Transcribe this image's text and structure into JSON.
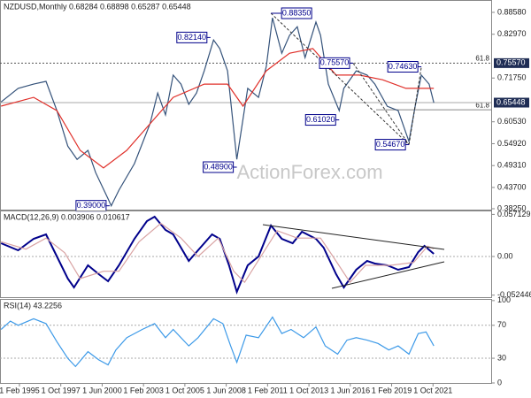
{
  "chart_data": [
    {
      "type": "line",
      "title": "NZDUSD,Monthly  0.68284 0.68898 0.65287 0.65448",
      "watermark": "ActionForex.com",
      "xlim": [
        1993.83,
        2025.5
      ],
      "ylim": [
        0.3802,
        0.9175
      ],
      "yticks": [
        {
          "value": 0.8858,
          "label": "0.88580"
        },
        {
          "value": 0.8297,
          "label": "0.82970"
        },
        {
          "value": 0.7175,
          "label": "0.71750"
        },
        {
          "value": 0.6053,
          "label": "0.60530"
        },
        {
          "value": 0.5492,
          "label": "0.54920"
        },
        {
          "value": 0.4931,
          "label": "0.49310"
        },
        {
          "value": 0.437,
          "label": "0.43700"
        },
        {
          "value": 0.3825,
          "label": "0.38250"
        }
      ],
      "price_markers": [
        {
          "value": 0.7557,
          "label": "0.75570"
        },
        {
          "value": 0.65448,
          "label": "0.65448"
        }
      ],
      "fib_levels": [
        {
          "value": 0.7557,
          "label": "61.8"
        },
        {
          "value": 0.636,
          "label": "61.8"
        }
      ],
      "series": [
        {
          "color": "#34527a",
          "x": [
            1993.9,
            1995.0,
            1996.0,
            1996.8,
            1997.5,
            1998.2,
            1998.8,
            1999.5,
            2000.0,
            2000.8,
            2001.0,
            2001.5,
            2002.5,
            2003.5,
            2004.0,
            2004.5,
            2005.0,
            2005.5,
            2006.0,
            2006.5,
            2007.0,
            2007.6,
            2008.0,
            2008.5,
            2009.1,
            2009.8,
            2010.5,
            2011.0,
            2011.4,
            2012.0,
            2012.5,
            2013.0,
            2013.5,
            2014.2,
            2014.5,
            2015.0,
            2015.7,
            2016.0,
            2016.8,
            2017.5,
            2018.0,
            2018.8,
            2019.5,
            2020.2,
            2020.6,
            2021.0,
            2021.5,
            2021.8
          ],
          "values": [
            0.656,
            0.691,
            0.702,
            0.709,
            0.634,
            0.543,
            0.509,
            0.532,
            0.475,
            0.408,
            0.39,
            0.43,
            0.498,
            0.6,
            0.679,
            0.623,
            0.725,
            0.702,
            0.65,
            0.679,
            0.736,
            0.815,
            0.793,
            0.736,
            0.509,
            0.691,
            0.668,
            0.747,
            0.872,
            0.781,
            0.827,
            0.849,
            0.77,
            0.861,
            0.827,
            0.702,
            0.634,
            0.691,
            0.736,
            0.725,
            0.702,
            0.645,
            0.634,
            0.555,
            0.645,
            0.725,
            0.702,
            0.654
          ]
        },
        {
          "color": "#e0302a",
          "x": [
            1993.9,
            1996.0,
            1997.5,
            1999.0,
            2000.5,
            2002.0,
            2003.5,
            2005.0,
            2007.0,
            2008.5,
            2009.5,
            2011.0,
            2012.5,
            2014.0,
            2015.5,
            2017.0,
            2018.5,
            2020.0,
            2021.8
          ],
          "values": [
            0.6455,
            0.668,
            0.634,
            0.532,
            0.487,
            0.532,
            0.6,
            0.668,
            0.702,
            0.702,
            0.6455,
            0.736,
            0.781,
            0.793,
            0.725,
            0.725,
            0.713,
            0.691,
            0.691
          ]
        }
      ],
      "annotations": [
        {
          "label": "0.88350",
          "x": 2011.3,
          "y": 0.8835
        },
        {
          "label": "0.82140",
          "x": 2007.4,
          "y": 0.8214
        },
        {
          "label": "0.75570",
          "x": 2016.6,
          "y": 0.7557
        },
        {
          "label": "0.74630",
          "x": 2021.0,
          "y": 0.7463
        },
        {
          "label": "0.61020",
          "x": 2015.7,
          "y": 0.6102
        },
        {
          "label": "0.54670",
          "x": 2020.2,
          "y": 0.5467
        },
        {
          "label": "0.48900",
          "x": 2009.1,
          "y": 0.489
        },
        {
          "label": "0.39000",
          "x": 2000.9,
          "y": 0.39
        }
      ]
    },
    {
      "type": "line",
      "title": "MACD(12,26,9) 0.003906 0.010617",
      "xlim": [
        1993.83,
        2025.5
      ],
      "ylim": [
        -0.0552,
        0.0624
      ],
      "yticks": [
        0.057129,
        {
          "value": 0,
          "label": "0.00"
        },
        -0.052446
      ],
      "series": [
        {
          "color": "#00008b",
          "x": [
            1993.9,
            1995.0,
            1996.0,
            1996.8,
            1997.5,
            1998.2,
            1998.6,
            1999.5,
            2000.2,
            2000.8,
            2001.5,
            2002.5,
            2003.3,
            2003.8,
            2004.5,
            2005.0,
            2006.0,
            2006.5,
            2007.5,
            2008.0,
            2008.6,
            2009.1,
            2009.8,
            2010.5,
            2011.3,
            2012.0,
            2012.7,
            2013.3,
            2014.2,
            2014.7,
            2015.5,
            2016.0,
            2016.8,
            2017.5,
            2018.0,
            2018.8,
            2019.5,
            2020.2,
            2020.8,
            2021.2,
            2021.8
          ],
          "values": [
            0.018,
            0.0084,
            0.024,
            0.03,
            0,
            -0.03,
            -0.042,
            -0.012,
            -0.024,
            -0.0336,
            -0.012,
            0.024,
            0.048,
            0.054,
            0.036,
            0.03,
            -0.006,
            0.006,
            0.03,
            0.024,
            -0.012,
            -0.048,
            -0.012,
            0,
            0.042,
            0.024,
            0.018,
            0.0336,
            0.024,
            0.012,
            -0.024,
            -0.042,
            -0.018,
            -0.006,
            -0.0096,
            -0.012,
            -0.018,
            -0.0144,
            0.006,
            0.0144,
            0.0036
          ]
        },
        {
          "color": "#d9a3a3",
          "x": [
            1993.9,
            1995.5,
            1996.8,
            1998.0,
            1999.0,
            2000.5,
            2001.5,
            2002.8,
            2004.2,
            2005.5,
            2006.6,
            2007.9,
            2008.9,
            2009.6,
            2010.5,
            2011.7,
            2013.0,
            2014.5,
            2015.3,
            2016.4,
            2017.4,
            2019.0,
            2020.5,
            2021.4,
            2021.8
          ],
          "values": [
            0.02,
            0.01,
            0.025,
            0.005,
            -0.03,
            -0.02,
            -0.02,
            0.02,
            0.045,
            0.025,
            0,
            0.025,
            -0.02,
            -0.035,
            -0.005,
            0.035,
            0.025,
            0.025,
            0,
            -0.035,
            -0.012,
            -0.012,
            -0.008,
            0.014,
            0.0106
          ]
        }
      ]
    },
    {
      "type": "line",
      "title": "RSI(14) 43.2256",
      "xlim": [
        1993.83,
        2025.5
      ],
      "ylim": [
        0,
        102
      ],
      "yticks": [
        100,
        70,
        30,
        0
      ],
      "xticks": [
        {
          "value": 1995.083,
          "label": "1 Feb 1995"
        },
        {
          "value": 1997.75,
          "label": "1 Oct 1997"
        },
        {
          "value": 2000.417,
          "label": "1 Jun 2000"
        },
        {
          "value": 2003.083,
          "label": "1 Feb 2003"
        },
        {
          "value": 2005.75,
          "label": "1 Oct 2005"
        },
        {
          "value": 2008.417,
          "label": "1 Jun 2008"
        },
        {
          "value": 2011.083,
          "label": "1 Feb 2011"
        },
        {
          "value": 2013.75,
          "label": "1 Oct 2013"
        },
        {
          "value": 2016.417,
          "label": "1 Jun 2016"
        },
        {
          "value": 2019.083,
          "label": "1 Feb 2019"
        },
        {
          "value": 2021.75,
          "label": "1 Oct 2021"
        }
      ],
      "series": [
        {
          "color": "#3d9ae8",
          "x": [
            1993.9,
            1994.5,
            1995.0,
            1996.0,
            1996.8,
            1997.5,
            1998.2,
            1998.7,
            1999.5,
            2000.2,
            2000.8,
            2001.3,
            2002.0,
            2003.0,
            2003.8,
            2004.5,
            2005.0,
            2006.0,
            2006.6,
            2007.6,
            2008.2,
            2008.7,
            2009.1,
            2009.7,
            2010.5,
            2011.4,
            2012.0,
            2012.6,
            2013.4,
            2014.2,
            2014.8,
            2015.6,
            2016.2,
            2016.8,
            2017.5,
            2018.2,
            2018.9,
            2019.5,
            2020.2,
            2020.8,
            2021.3,
            2021.8
          ],
          "values": [
            65,
            75,
            70,
            78,
            72,
            50,
            30,
            20,
            38,
            28,
            22,
            40,
            55,
            65,
            72,
            55,
            65,
            45,
            55,
            78,
            72,
            45,
            25,
            58,
            55,
            80,
            60,
            65,
            55,
            68,
            45,
            35,
            52,
            55,
            52,
            48,
            40,
            45,
            35,
            60,
            62,
            45
          ]
        }
      ]
    }
  ]
}
